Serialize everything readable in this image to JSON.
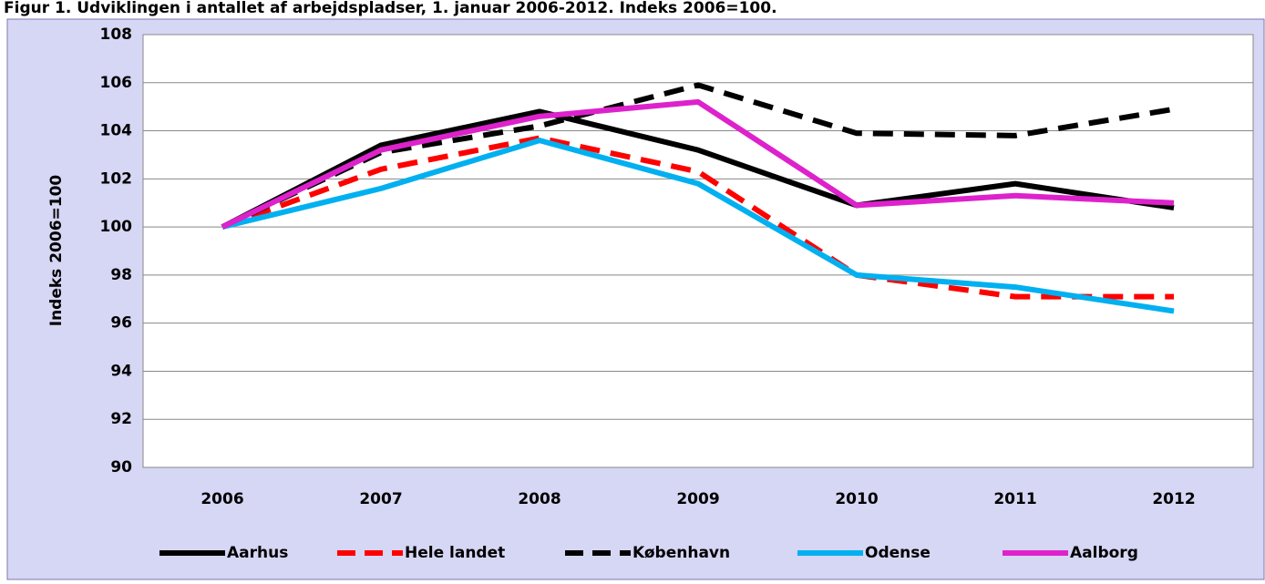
{
  "chart_data": {
    "type": "line",
    "title": "Figur 1. Udviklingen i antallet af arbejdspladser, 1. januar 2006-2012. Indeks 2006=100.",
    "ylabel": "Indeks 2006=100",
    "categories": [
      "2006",
      "2007",
      "2008",
      "2009",
      "2010",
      "2011",
      "2012"
    ],
    "series": [
      {
        "name": "Aarhus",
        "color": "#000000",
        "dashed": false,
        "values": [
          100,
          103.4,
          104.8,
          103.2,
          100.9,
          101.8,
          100.8
        ]
      },
      {
        "name": "Hele landet",
        "color": "#ff0000",
        "dashed": true,
        "values": [
          100,
          102.4,
          103.7,
          102.3,
          98.0,
          97.1,
          97.1
        ]
      },
      {
        "name": "København",
        "color": "#000000",
        "dashed": true,
        "values": [
          100,
          103.1,
          104.2,
          105.9,
          103.9,
          103.8,
          104.9
        ]
      },
      {
        "name": "Odense",
        "color": "#00b0f0",
        "dashed": false,
        "values": [
          100,
          101.6,
          103.6,
          101.8,
          98.0,
          97.5,
          96.5
        ]
      },
      {
        "name": "Aalborg",
        "color": "#dd22cc",
        "dashed": false,
        "values": [
          100,
          103.2,
          104.6,
          105.2,
          100.9,
          101.3,
          101.0
        ]
      }
    ],
    "ylim": [
      90,
      108
    ],
    "yticks": [
      90,
      92,
      94,
      96,
      98,
      100,
      102,
      104,
      106,
      108
    ],
    "grid": true,
    "legend": "bottom"
  }
}
